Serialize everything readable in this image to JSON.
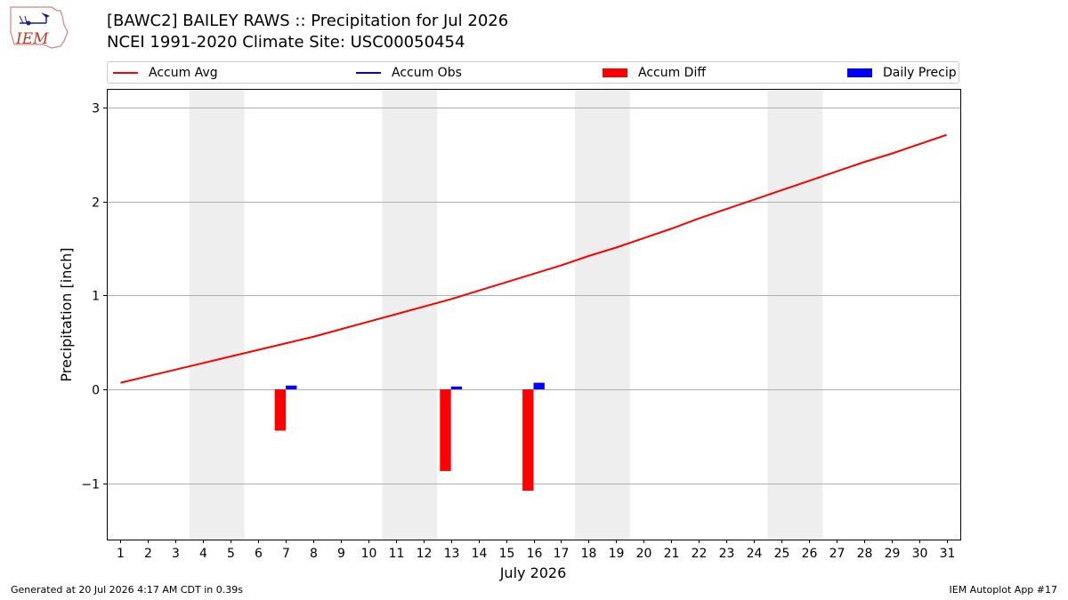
{
  "title": {
    "line1": "[BAWC2] BAILEY RAWS :: Precipitation for Jul 2026",
    "line2": "NCEI 1991-2020 Climate Site: USC00050454"
  },
  "logo": {
    "text": "IEM"
  },
  "legend": [
    {
      "label": "Accum Avg",
      "color": "#ff0000",
      "kind": "line"
    },
    {
      "label": "Accum Obs",
      "color": "#0000ff",
      "kind": "line"
    },
    {
      "label": "Accum Diff",
      "color": "#ff0000",
      "kind": "patch"
    },
    {
      "label": "Daily Precip",
      "color": "#0000ff",
      "kind": "patch"
    }
  ],
  "footer": {
    "left": "Generated at 20 Jul 2026 4:17 AM CDT in 0.39s",
    "right": "IEM Autoplot App #17"
  },
  "chart_data": {
    "type": "bar",
    "xlabel": "July 2026",
    "ylabel": "Precipitation [inch]",
    "xlim": [
      0.5,
      31.5
    ],
    "ylim": [
      -1.6,
      3.2
    ],
    "yticks": [
      -1,
      0,
      1,
      2,
      3
    ],
    "ytick_labels": [
      "−1",
      "0",
      "1",
      "2",
      "3"
    ],
    "categories": [
      "1",
      "2",
      "3",
      "4",
      "5",
      "6",
      "7",
      "8",
      "9",
      "10",
      "11",
      "12",
      "13",
      "14",
      "15",
      "16",
      "17",
      "18",
      "19",
      "20",
      "21",
      "22",
      "23",
      "24",
      "25",
      "26",
      "27",
      "28",
      "29",
      "30",
      "31"
    ],
    "weekend_spans": [
      [
        3.5,
        5.5
      ],
      [
        10.5,
        12.5
      ],
      [
        17.5,
        19.5
      ],
      [
        24.5,
        26.5
      ]
    ],
    "grid": "horizontal",
    "series": [
      {
        "name": "Accum Avg",
        "type": "line",
        "color": "#ff0000",
        "x": [
          1,
          2,
          3,
          4,
          5,
          6,
          7,
          8,
          9,
          10,
          11,
          12,
          13,
          14,
          15,
          16,
          17,
          18,
          19,
          20,
          21,
          22,
          23,
          24,
          25,
          26,
          27,
          28,
          29,
          30,
          31
        ],
        "values": [
          0.07,
          0.14,
          0.21,
          0.28,
          0.35,
          0.42,
          0.49,
          0.56,
          0.64,
          0.72,
          0.8,
          0.88,
          0.96,
          1.05,
          1.14,
          1.23,
          1.32,
          1.42,
          1.51,
          1.61,
          1.71,
          1.82,
          1.92,
          2.02,
          2.12,
          2.22,
          2.32,
          2.42,
          2.51,
          2.61,
          2.71
        ]
      },
      {
        "name": "Accum Diff",
        "type": "bar",
        "color": "#ff0000",
        "x": [
          7,
          13,
          16
        ],
        "values": [
          -0.44,
          -0.87,
          -1.08
        ]
      },
      {
        "name": "Daily Precip",
        "type": "bar",
        "color": "#0000ff",
        "x": [
          7,
          13,
          16
        ],
        "values": [
          0.04,
          0.03,
          0.07
        ]
      }
    ]
  }
}
